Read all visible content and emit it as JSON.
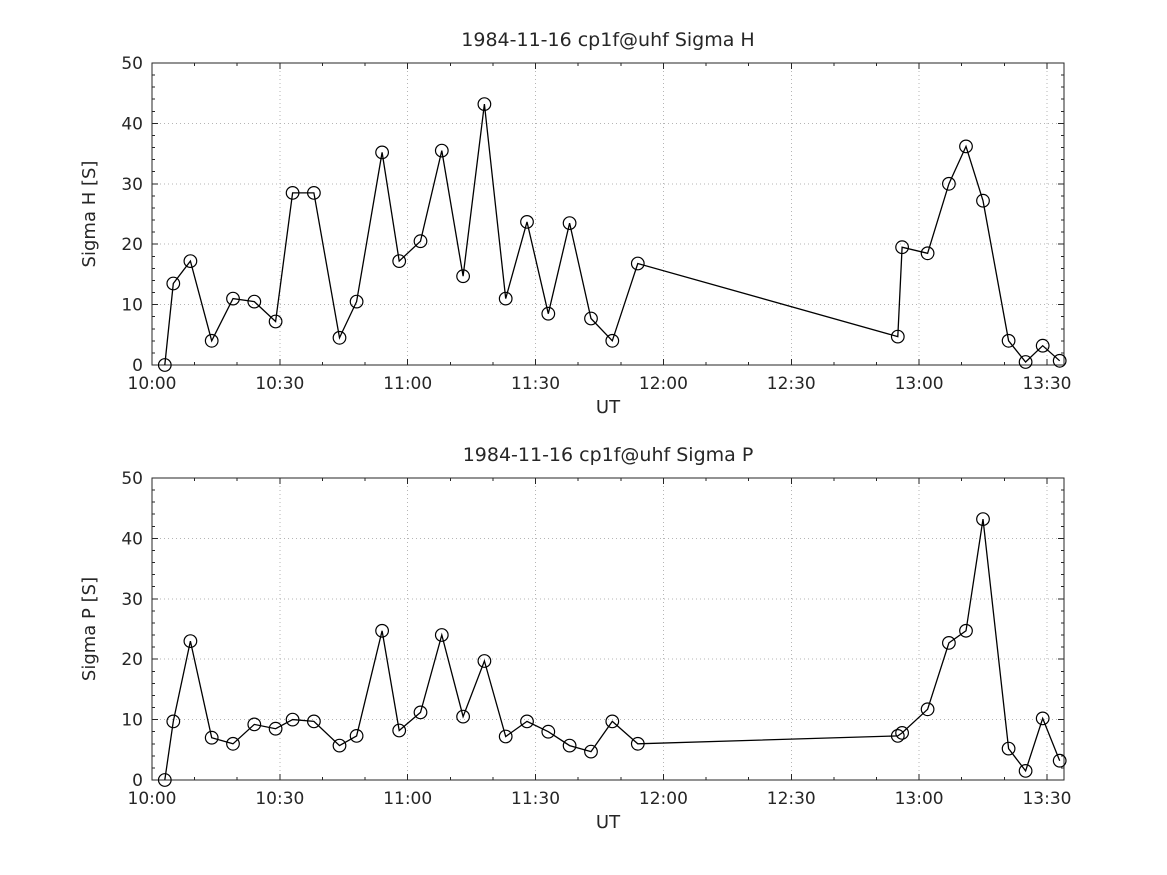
{
  "page": {
    "background": "#ffffff",
    "axis_color": "#262626",
    "grid_color": "#b5b5b5"
  },
  "chart_data": [
    {
      "type": "line",
      "title": "1984-11-16  cp1f@uhf Sigma H",
      "xlabel": "UT",
      "ylabel": "Sigma H [S]",
      "ylim": [
        0,
        50
      ],
      "yticks": [
        0,
        10,
        20,
        30,
        40,
        50
      ],
      "x_ticks": [
        "10:00",
        "10:30",
        "11:00",
        "11:30",
        "12:00",
        "12:30",
        "13:00",
        "13:30"
      ],
      "x_range": [
        "10:00",
        "13:34"
      ],
      "x_minor_step_minutes": 10,
      "y_minor_step": 2,
      "grid": "dotted",
      "legend": "none",
      "line_color": "#000000",
      "marker": "open-circle",
      "series": [
        {
          "name": "Sigma H",
          "points": [
            [
              "10:03",
              0.0
            ],
            [
              "10:05",
              13.5
            ],
            [
              "10:09",
              17.2
            ],
            [
              "10:14",
              4.0
            ],
            [
              "10:19",
              11.0
            ],
            [
              "10:24",
              10.5
            ],
            [
              "10:29",
              7.2
            ],
            [
              "10:33",
              28.5
            ],
            [
              "10:38",
              28.5
            ],
            [
              "10:44",
              4.5
            ],
            [
              "10:48",
              10.5
            ],
            [
              "10:54",
              35.2
            ],
            [
              "10:58",
              17.2
            ],
            [
              "11:03",
              20.5
            ],
            [
              "11:08",
              35.5
            ],
            [
              "11:13",
              14.7
            ],
            [
              "11:18",
              43.2
            ],
            [
              "11:23",
              11.0
            ],
            [
              "11:28",
              23.7
            ],
            [
              "11:33",
              8.5
            ],
            [
              "11:38",
              23.5
            ],
            [
              "11:43",
              7.7
            ],
            [
              "11:48",
              4.0
            ],
            [
              "11:54",
              16.8
            ],
            [
              "12:55",
              4.7
            ],
            [
              "12:56",
              19.5
            ],
            [
              "13:02",
              18.5
            ],
            [
              "13:07",
              30.0
            ],
            [
              "13:11",
              36.2
            ],
            [
              "13:15",
              27.2
            ],
            [
              "13:21",
              4.0
            ],
            [
              "13:25",
              0.5
            ],
            [
              "13:29",
              3.2
            ],
            [
              "13:33",
              0.7
            ]
          ]
        }
      ]
    },
    {
      "type": "line",
      "title": "1984-11-16  cp1f@uhf Sigma P",
      "xlabel": "UT",
      "ylabel": "Sigma P [S]",
      "ylim": [
        0,
        50
      ],
      "yticks": [
        0,
        10,
        20,
        30,
        40,
        50
      ],
      "x_ticks": [
        "10:00",
        "10:30",
        "11:00",
        "11:30",
        "12:00",
        "12:30",
        "13:00",
        "13:30"
      ],
      "x_range": [
        "10:00",
        "13:34"
      ],
      "x_minor_step_minutes": 10,
      "y_minor_step": 2,
      "grid": "dotted",
      "legend": "none",
      "line_color": "#000000",
      "marker": "open-circle",
      "series": [
        {
          "name": "Sigma P",
          "points": [
            [
              "10:03",
              0.0
            ],
            [
              "10:05",
              9.7
            ],
            [
              "10:09",
              23.0
            ],
            [
              "10:14",
              7.0
            ],
            [
              "10:19",
              6.0
            ],
            [
              "10:24",
              9.2
            ],
            [
              "10:29",
              8.5
            ],
            [
              "10:33",
              10.0
            ],
            [
              "10:38",
              9.7
            ],
            [
              "10:44",
              5.7
            ],
            [
              "10:48",
              7.3
            ],
            [
              "10:54",
              24.7
            ],
            [
              "10:58",
              8.2
            ],
            [
              "11:03",
              11.2
            ],
            [
              "11:08",
              24.0
            ],
            [
              "11:13",
              10.5
            ],
            [
              "11:18",
              19.7
            ],
            [
              "11:23",
              7.2
            ],
            [
              "11:28",
              9.7
            ],
            [
              "11:33",
              8.0
            ],
            [
              "11:38",
              5.7
            ],
            [
              "11:43",
              4.7
            ],
            [
              "11:48",
              9.7
            ],
            [
              "11:54",
              6.0
            ],
            [
              "12:55",
              7.3
            ],
            [
              "12:56",
              7.8
            ],
            [
              "13:02",
              11.7
            ],
            [
              "13:07",
              22.7
            ],
            [
              "13:11",
              24.7
            ],
            [
              "13:15",
              43.2
            ],
            [
              "13:21",
              5.2
            ],
            [
              "13:25",
              1.5
            ],
            [
              "13:29",
              10.2
            ],
            [
              "13:33",
              3.2
            ]
          ]
        }
      ]
    }
  ]
}
